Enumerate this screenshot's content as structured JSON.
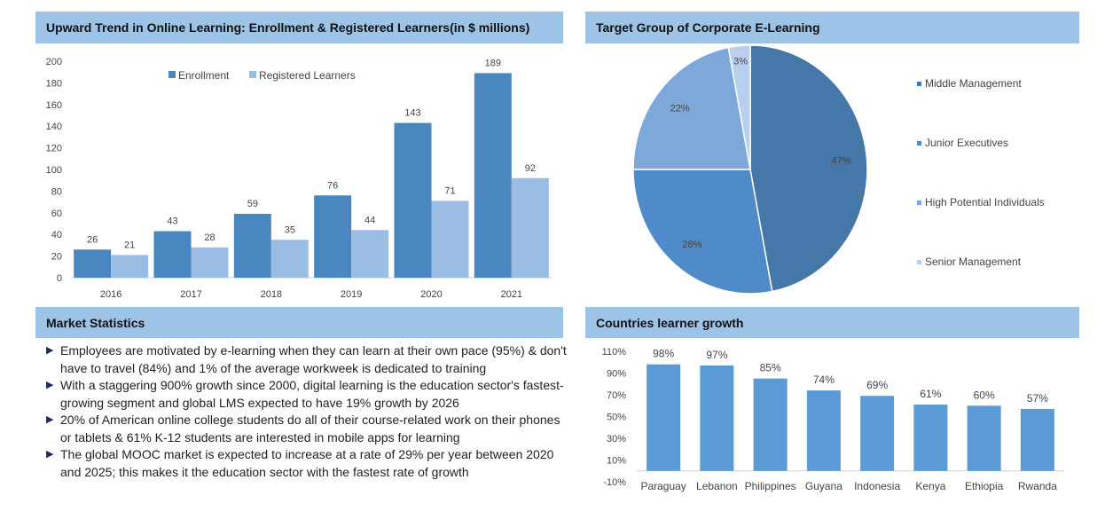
{
  "headers": {
    "enrollment": "Upward Trend in Online Learning: Enrollment & Registered Learners(in $ millions)",
    "target": "Target Group of Corporate E-Learning",
    "market": "Market Statistics",
    "countries": "Countries learner growth"
  },
  "market_statistics": [
    "Employees are motivated by e-learning when they can learn at their own pace (95%) & don't have to travel (84%) and 1% of the average workweek is dedicated to training",
    "With a staggering 900% growth since 2000, digital learning is the education sector's fastest-growing segment and global LMS expected to have 19% growth by 2026",
    "20% of American online college students  do all of their course-related work on their phones or tablets & 61% K-12 students are interested in mobile apps for learning",
    "The global MOOC market is expected to increase at a rate of 29% per year between 2020 and 2025; this makes it the education sector with the fastest rate of growth"
  ],
  "chart_data": [
    {
      "type": "bar",
      "title": "Upward Trend in Online Learning: Enrollment & Registered Learners(in $ millions)",
      "categories": [
        "2016",
        "2017",
        "2018",
        "2019",
        "2020",
        "2021"
      ],
      "series": [
        {
          "name": "Enrollment",
          "color": "#4a86c0",
          "values": [
            26,
            43,
            59,
            76,
            143,
            189
          ]
        },
        {
          "name": "Registered Learners",
          "color": "#9bbde3",
          "values": [
            21,
            28,
            35,
            44,
            71,
            92
          ]
        }
      ],
      "ylim": [
        0,
        200
      ],
      "yticks": [
        0,
        20,
        40,
        60,
        80,
        100,
        120,
        140,
        160,
        180,
        200
      ],
      "legend": "top",
      "grid": false
    },
    {
      "type": "pie",
      "title": "Target Group of Corporate E-Learning",
      "legend": "right",
      "slices": [
        {
          "label": "Middle Management",
          "value": 47,
          "color": "#4677a9"
        },
        {
          "label": "Junior Executives",
          "value": 28,
          "color": "#4f8bc8"
        },
        {
          "label": "High Potential Individuals",
          "value": 22,
          "color": "#7ea8d9"
        },
        {
          "label": "Senior Management",
          "value": 3,
          "color": "#b8cfee"
        }
      ]
    },
    {
      "type": "bar",
      "title": "Countries learner growth",
      "categories": [
        "Paraguay",
        "Lebanon",
        "Philippines",
        "Guyana",
        "Indonesia",
        "Kenya",
        "Ethiopia",
        "Rwanda"
      ],
      "series": [
        {
          "color": "#5b9bd5",
          "values": [
            98,
            97,
            85,
            74,
            69,
            61,
            60,
            57
          ]
        }
      ],
      "ylim": [
        -10,
        110
      ],
      "yticks": [
        "-10%",
        "10%",
        "30%",
        "50%",
        "70%",
        "90%",
        "110%"
      ],
      "grid": false
    }
  ]
}
